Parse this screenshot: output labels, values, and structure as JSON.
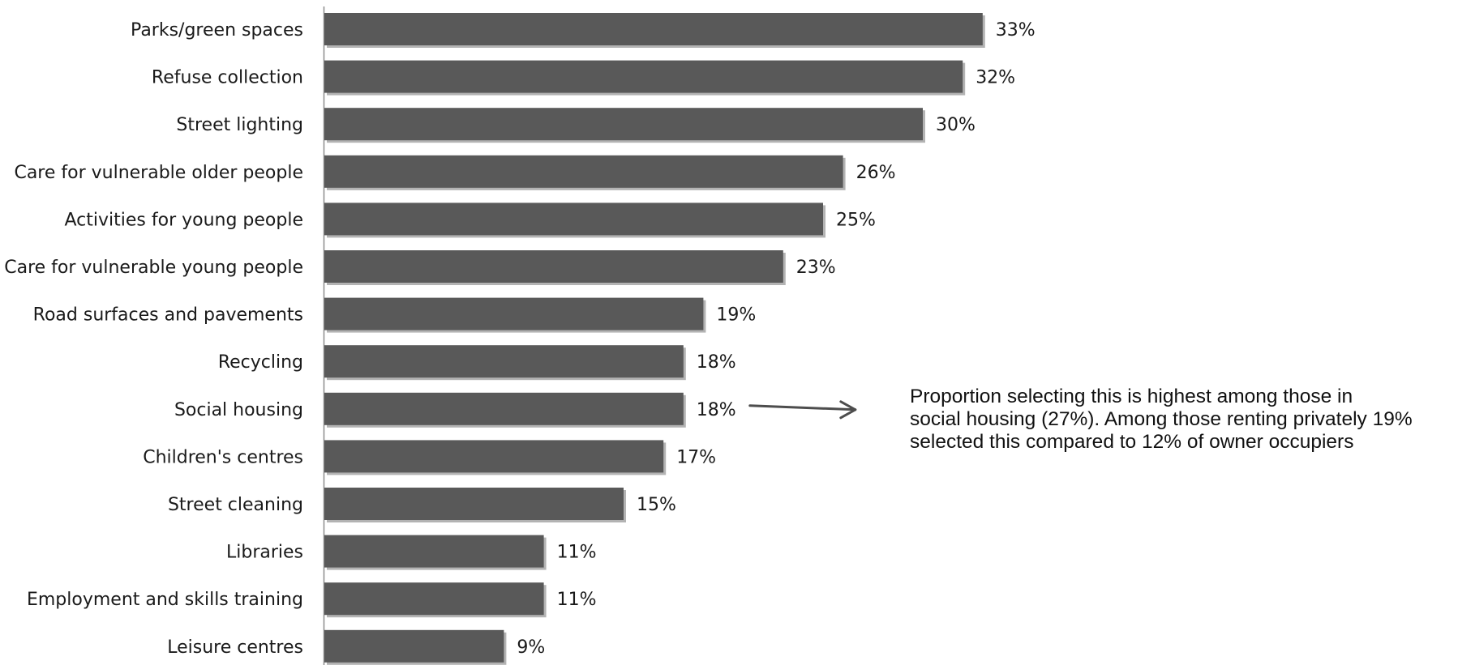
{
  "chart_data": {
    "type": "bar",
    "orientation": "horizontal",
    "categories": [
      "Parks/green spaces",
      "Refuse collection",
      "Street lighting",
      "Care for vulnerable older people",
      "Activities for young people",
      "Care for vulnerable young people",
      "Road surfaces and pavements",
      "Recycling",
      "Social housing",
      "Children's centres",
      "Street cleaning",
      "Libraries",
      "Employment and skills training",
      "Leisure centres"
    ],
    "values": [
      33,
      32,
      30,
      26,
      25,
      23,
      19,
      18,
      18,
      17,
      15,
      11,
      11,
      9
    ],
    "value_labels": [
      "33%",
      "32%",
      "30%",
      "26%",
      "25%",
      "23%",
      "19%",
      "18%",
      "18%",
      "17%",
      "15%",
      "11%",
      "11%",
      "9%"
    ],
    "title": "",
    "xlabel": "",
    "ylabel": "",
    "grid": false,
    "bar_color": "#595959",
    "annotation": {
      "target_category": "Social housing",
      "lines": [
        "Proportion selecting this is highest among those in",
        "social housing (27%). Among those renting privately 19%",
        "selected this compared to 12% of owner occupiers"
      ]
    }
  }
}
